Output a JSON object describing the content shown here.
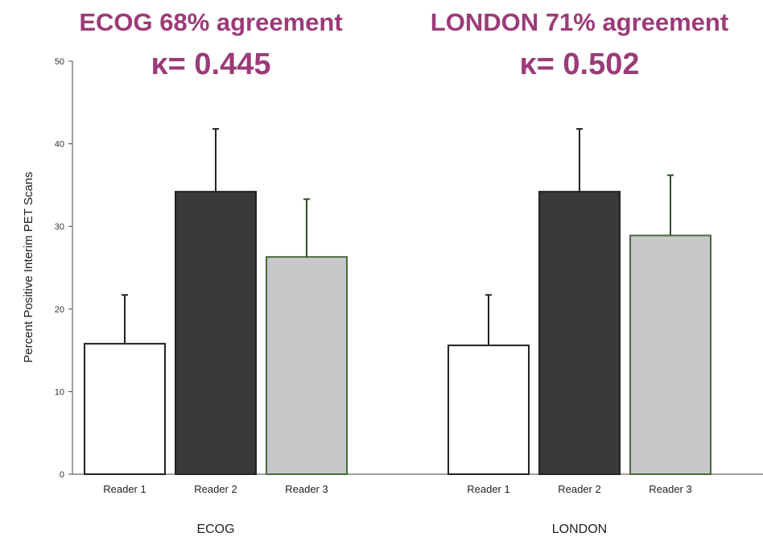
{
  "chart_data": {
    "type": "bar",
    "ylabel": "Percent Positive Interim PET Scans",
    "ylim": [
      0,
      50
    ],
    "yticks": [
      0,
      10,
      20,
      30,
      40,
      50
    ],
    "grid": false,
    "colors": {
      "reader1": "#ffffff",
      "reader2": "#3a3a3a",
      "reader3": "#c8c8c8",
      "bar_stroke_reader3": "#4a6b3a",
      "bar_stroke": "#222222",
      "annotation": "#9b3b78"
    },
    "groups": [
      {
        "name": "ECOG",
        "annotation_line1": "ECOG 68% agreement",
        "annotation_line2": "κ= 0.445",
        "categories": [
          "Reader 1",
          "Reader 2",
          "Reader 3"
        ],
        "values": [
          15.8,
          34.2,
          26.3
        ],
        "error_upper": [
          21.7,
          41.8,
          33.3
        ]
      },
      {
        "name": "LONDON",
        "annotation_line1": "LONDON 71% agreement",
        "annotation_line2": "κ= 0.502",
        "categories": [
          "Reader 1",
          "Reader 2",
          "Reader 3"
        ],
        "values": [
          15.6,
          34.2,
          28.9
        ],
        "error_upper": [
          21.7,
          41.8,
          36.2
        ]
      }
    ]
  }
}
